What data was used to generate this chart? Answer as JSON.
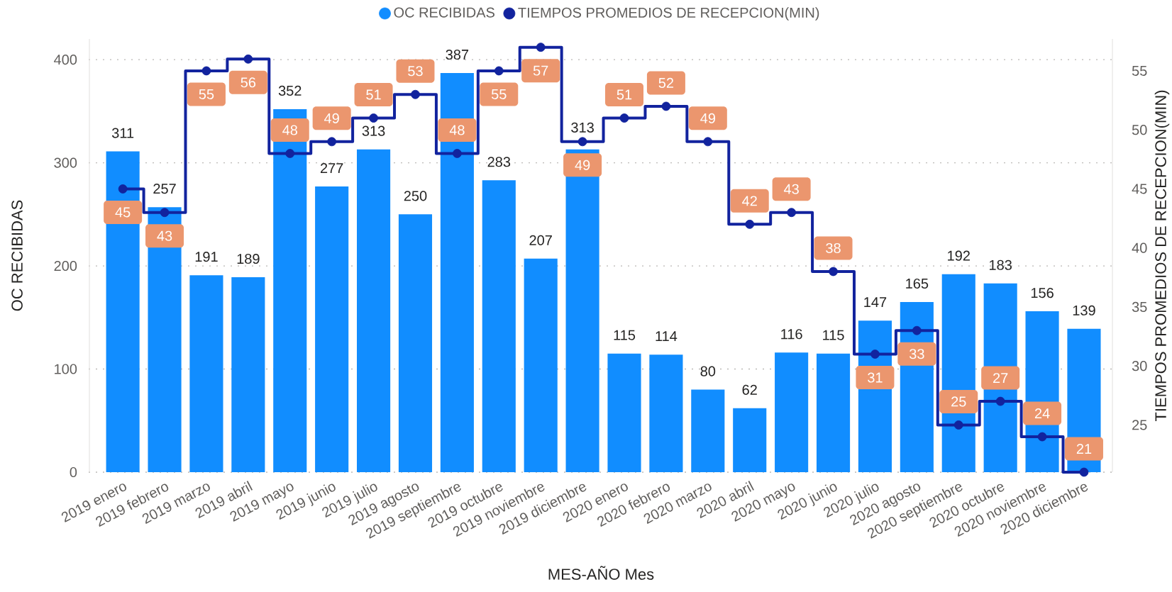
{
  "chart_data": {
    "type": "bar",
    "xlabel": "MES-AÑO Mes",
    "ylabel": "OC RECIBIDAS",
    "y2label": "TIEMPOS PROMEDIOS DE RECEPCION(MIN)",
    "categories": [
      "2019 enero",
      "2019 febrero",
      "2019 marzo",
      "2019 abril",
      "2019 mayo",
      "2019 junio",
      "2019 julio",
      "2019 agosto",
      "2019 septiembre",
      "2019 octubre",
      "2019 noviembre",
      "2019 diciembre",
      "2020 enero",
      "2020 febrero",
      "2020 marzo",
      "2020 abril",
      "2020 mayo",
      "2020 junio",
      "2020 julio",
      "2020 agosto",
      "2020 septiembre",
      "2020 octubre",
      "2020 noviembre",
      "2020 diciembre"
    ],
    "series": [
      {
        "name": "OC RECIBIDAS",
        "color": "#118DFF",
        "values": [
          311,
          257,
          191,
          189,
          352,
          277,
          313,
          250,
          387,
          283,
          207,
          313,
          115,
          114,
          80,
          62,
          116,
          115,
          147,
          165,
          192,
          183,
          156,
          139
        ]
      },
      {
        "name": "TIEMPOS PROMEDIOS DE RECEPCION(MIN)",
        "type": "step",
        "axis": "y2",
        "color": "#12239E",
        "values": [
          45,
          43,
          55,
          56,
          48,
          49,
          51,
          53,
          48,
          55,
          57,
          49,
          51,
          52,
          49,
          42,
          43,
          38,
          31,
          33,
          25,
          27,
          24,
          21
        ]
      }
    ],
    "ylim": [
      0,
      420
    ],
    "yticks": [
      0,
      100,
      200,
      300,
      400
    ],
    "y2lim": [
      21,
      57.7
    ],
    "y2ticks": [
      25,
      30,
      35,
      40,
      45,
      50,
      55
    ],
    "grid": "y",
    "legend": "top",
    "marker": "circle",
    "data_labels": true
  }
}
